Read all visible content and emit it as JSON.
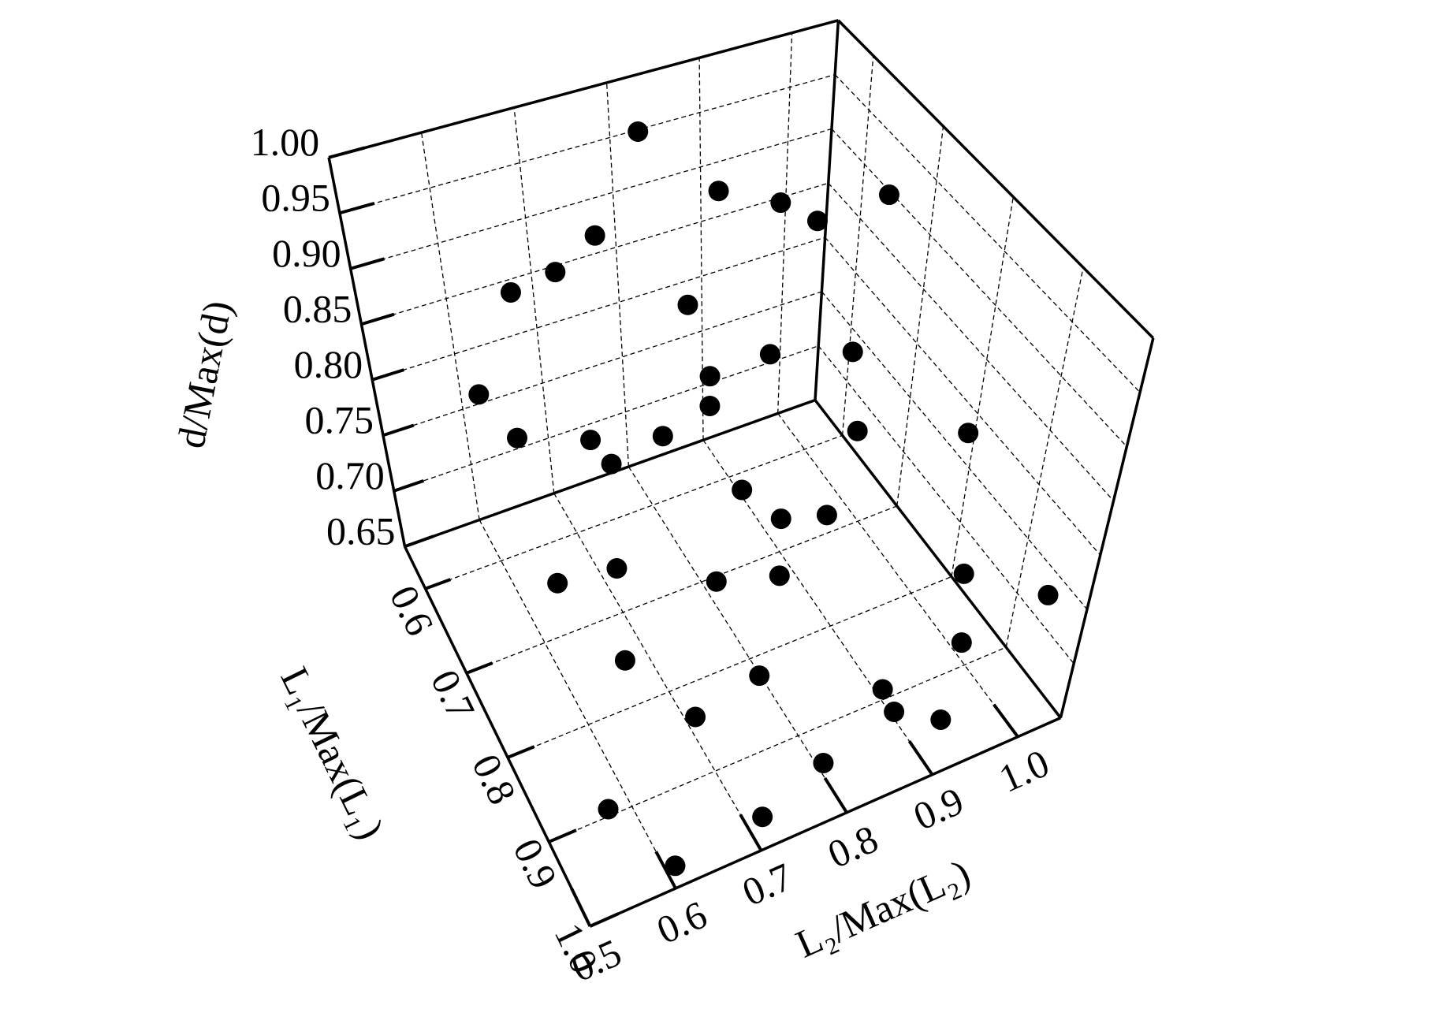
{
  "chart_data": {
    "type": "scatter3d",
    "xlabel": "L₂/Max(L₂)",
    "ylabel": "L₁/Max(L₁)",
    "zlabel": "d/Max(d)",
    "x": [
      0.55,
      0.6,
      0.62,
      0.65,
      0.7,
      0.72,
      0.75,
      0.78,
      0.8,
      0.82,
      0.85,
      0.88,
      0.9,
      0.92,
      0.95,
      0.98,
      1.0,
      1.0,
      0.6,
      0.65,
      0.7,
      0.75,
      0.8,
      0.85,
      0.9,
      0.95,
      0.7,
      0.6,
      0.55,
      0.65,
      0.75,
      0.85,
      0.95,
      1.0,
      0.9,
      0.8,
      0.7,
      0.6,
      1.0,
      0.9
    ],
    "y": [
      0.95,
      0.9,
      0.85,
      0.7,
      0.8,
      0.65,
      0.9,
      0.75,
      0.6,
      0.7,
      0.85,
      0.95,
      0.8,
      0.65,
      0.75,
      0.9,
      0.6,
      0.85,
      0.75,
      0.95,
      0.65,
      0.6,
      0.95,
      0.7,
      1.0,
      0.6,
      1.0,
      0.6,
      0.8,
      0.6,
      0.8,
      0.6,
      0.95,
      0.7,
      0.9,
      0.85,
      0.9,
      1.0,
      1.0,
      0.7
    ],
    "z": [
      0.7,
      0.78,
      0.82,
      0.97,
      0.88,
      0.95,
      0.72,
      0.85,
      0.99,
      1.0,
      0.8,
      0.68,
      0.9,
      0.93,
      0.78,
      0.74,
      0.86,
      0.83,
      0.74,
      0.75,
      0.77,
      0.7,
      0.66,
      0.72,
      0.7,
      0.75,
      0.68,
      0.8,
      0.92,
      0.88,
      0.92,
      0.82,
      0.72,
      0.95,
      0.66,
      0.76,
      0.82,
      0.67,
      0.78,
      0.68
    ],
    "color": "#000000",
    "xlim": [
      0.5,
      1.05
    ],
    "ylim": [
      0.55,
      1.0
    ],
    "zlim": [
      0.65,
      1.0
    ],
    "xticks": [
      0.5,
      0.6,
      0.7,
      0.8,
      0.9,
      {
        "value": 1,
        "label": "1.0"
      }
    ],
    "yticks": [
      0.6,
      0.7,
      0.8,
      0.9,
      {
        "value": 1,
        "label": "1.0"
      }
    ],
    "zticks": [
      0.65,
      {
        "value": 0.7,
        "label": "0.70"
      },
      0.75,
      {
        "value": 0.8,
        "label": "0.80"
      },
      0.85,
      {
        "value": 0.9,
        "label": "0.90"
      },
      0.95,
      {
        "value": 1,
        "label": "1.00"
      }
    ],
    "grid": true
  }
}
